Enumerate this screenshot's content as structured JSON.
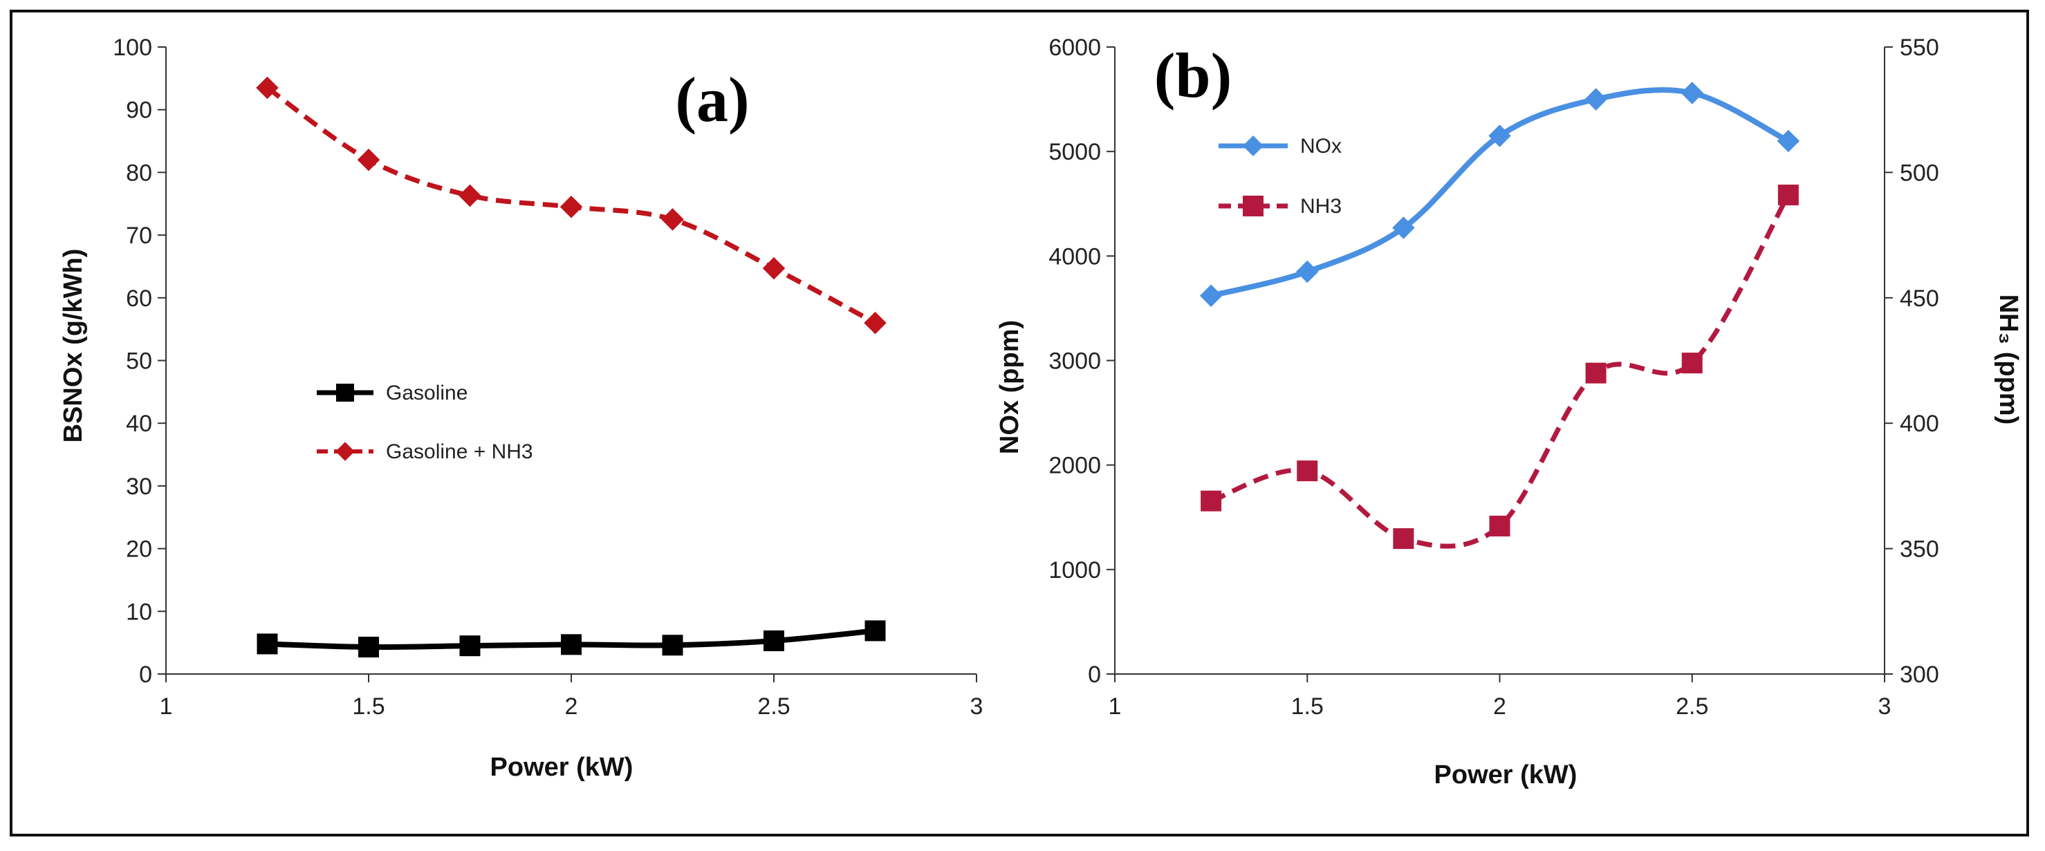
{
  "chart_data": [
    {
      "id": "a",
      "type": "line",
      "panel_label": "(a)",
      "xlabel": "Power (kW)",
      "ylabel": "BSNOx (g/kWh)",
      "xlim": [
        1,
        3
      ],
      "ylim": [
        0,
        100
      ],
      "xticks": [
        "1",
        "1.5",
        "2",
        "2.5",
        "3"
      ],
      "xtick_values": [
        1,
        1.5,
        2,
        2.5,
        3
      ],
      "yticks": [
        "0",
        "10",
        "20",
        "30",
        "40",
        "50",
        "60",
        "70",
        "80",
        "90",
        "100"
      ],
      "ytick_values": [
        0,
        10,
        20,
        30,
        40,
        50,
        60,
        70,
        80,
        90,
        100
      ],
      "x": [
        1.25,
        1.5,
        1.75,
        2,
        2.25,
        2.5,
        2.75
      ],
      "legend_position": "center-left",
      "series": [
        {
          "name": "Gasoline",
          "color": "#000000",
          "marker": "square",
          "dashed": false,
          "values": [
            4.8,
            4.3,
            4.5,
            4.7,
            4.6,
            5.3,
            6.9
          ]
        },
        {
          "name": "Gasoline + NH3",
          "color": "#c0141c",
          "marker": "diamond",
          "dashed": true,
          "values": [
            93.5,
            82,
            76.3,
            74.5,
            72.5,
            64.7,
            56
          ]
        }
      ]
    },
    {
      "id": "b",
      "type": "line",
      "panel_label": "(b)",
      "xlabel": "Power (kW)",
      "ylabel": "NOx (ppm)",
      "y2label": "NH₃ (ppm)",
      "xlim": [
        1,
        3
      ],
      "ylim": [
        0,
        6000
      ],
      "y2lim": [
        300,
        550
      ],
      "xticks": [
        "1",
        "1.5",
        "2",
        "2.5",
        "3"
      ],
      "xtick_values": [
        1,
        1.5,
        2,
        2.5,
        3
      ],
      "yticks": [
        "0",
        "1000",
        "2000",
        "3000",
        "4000",
        "5000",
        "6000"
      ],
      "ytick_values": [
        0,
        1000,
        2000,
        3000,
        4000,
        5000,
        6000
      ],
      "y2ticks": [
        "300",
        "350",
        "400",
        "450",
        "500",
        "550"
      ],
      "y2tick_values": [
        300,
        350,
        400,
        450,
        500,
        550
      ],
      "x": [
        1.25,
        1.5,
        1.75,
        2,
        2.25,
        2.5,
        2.75
      ],
      "legend_position": "top-left",
      "series": [
        {
          "name": "NOx",
          "color": "#4a90e2",
          "marker": "diamond",
          "dashed": false,
          "axis": "left",
          "values": [
            3620,
            3850,
            4270,
            5150,
            5500,
            5560,
            5100
          ]
        },
        {
          "name": "NH3",
          "color": "#b3193f",
          "marker": "square",
          "dashed": true,
          "axis": "right",
          "values": [
            369,
            381,
            354,
            359,
            420,
            424,
            491
          ]
        }
      ]
    }
  ]
}
